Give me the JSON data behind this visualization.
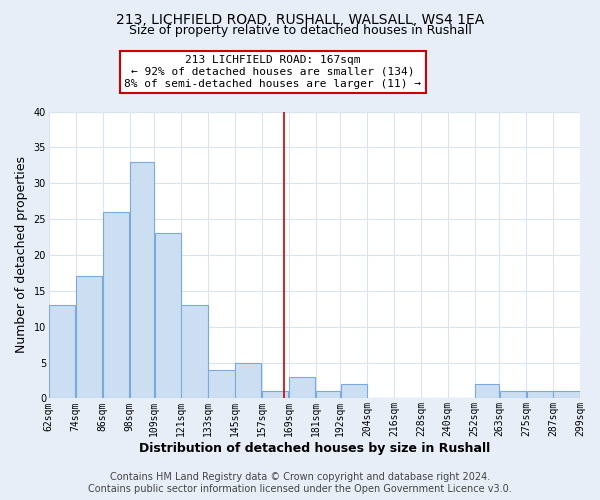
{
  "title": "213, LICHFIELD ROAD, RUSHALL, WALSALL, WS4 1EA",
  "subtitle": "Size of property relative to detached houses in Rushall",
  "xlabel": "Distribution of detached houses by size in Rushall",
  "ylabel": "Number of detached properties",
  "bar_left_edges": [
    62,
    74,
    86,
    98,
    109,
    121,
    133,
    145,
    157,
    169,
    181,
    192,
    204,
    216,
    228,
    240,
    252,
    263,
    275,
    287
  ],
  "bar_widths": [
    12,
    12,
    12,
    11,
    12,
    12,
    12,
    12,
    12,
    12,
    11,
    12,
    12,
    12,
    12,
    12,
    11,
    12,
    12,
    12
  ],
  "bar_heights": [
    13,
    17,
    26,
    33,
    23,
    13,
    4,
    5,
    1,
    3,
    1,
    2,
    0,
    0,
    0,
    0,
    2,
    1,
    1,
    1
  ],
  "bar_color": "#ccdff2",
  "bar_edgecolor": "#7aaadc",
  "ref_line_x": 167,
  "ref_line_color": "#cc0000",
  "annotation_line1": "213 LICHFIELD ROAD: 167sqm",
  "annotation_line2": "← 92% of detached houses are smaller (134)",
  "annotation_line3": "8% of semi-detached houses are larger (11) →",
  "annotation_box_edgecolor": "#cc0000",
  "annotation_box_facecolor": "#ffffff",
  "ylim": [
    0,
    40
  ],
  "xlim": [
    62,
    299
  ],
  "tick_labels": [
    "62sqm",
    "74sqm",
    "86sqm",
    "98sqm",
    "109sqm",
    "121sqm",
    "133sqm",
    "145sqm",
    "157sqm",
    "169sqm",
    "181sqm",
    "192sqm",
    "204sqm",
    "216sqm",
    "228sqm",
    "240sqm",
    "252sqm",
    "263sqm",
    "275sqm",
    "287sqm",
    "299sqm"
  ],
  "tick_positions": [
    62,
    74,
    86,
    98,
    109,
    121,
    133,
    145,
    157,
    169,
    181,
    192,
    204,
    216,
    228,
    240,
    252,
    263,
    275,
    287,
    299
  ],
  "footer_line1": "Contains HM Land Registry data © Crown copyright and database right 2024.",
  "footer_line2": "Contains public sector information licensed under the Open Government Licence v3.0.",
  "outer_background": "#e8eef8",
  "plot_background": "#ffffff",
  "grid_color": "#d8e4f0",
  "title_fontsize": 10,
  "subtitle_fontsize": 9,
  "axis_label_fontsize": 9,
  "tick_fontsize": 7,
  "footer_fontsize": 7,
  "annotation_fontsize": 8
}
